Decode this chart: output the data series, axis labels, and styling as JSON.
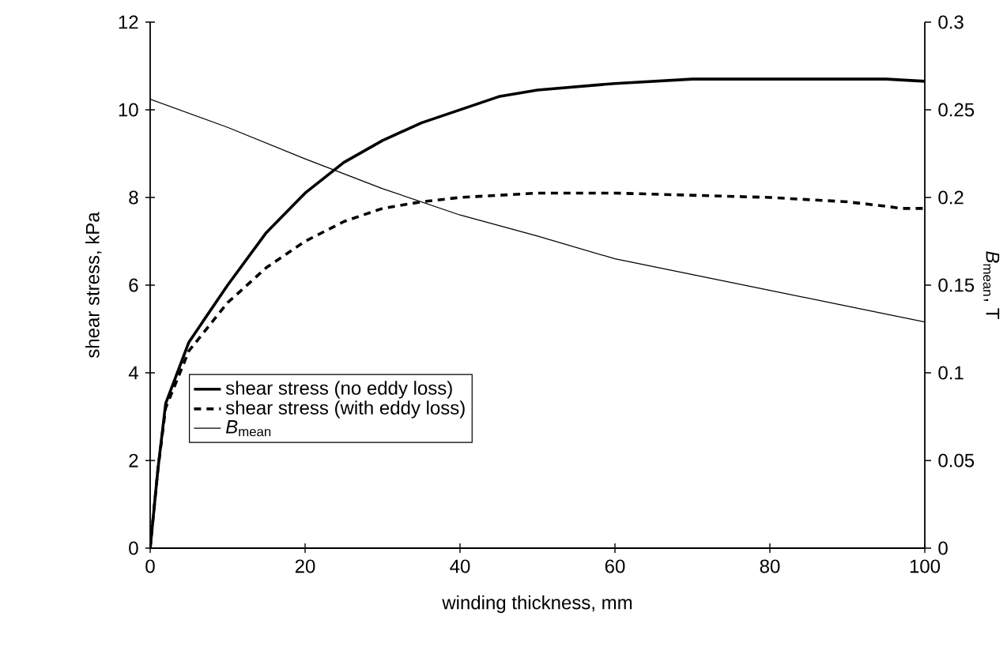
{
  "chart_data": {
    "type": "line",
    "xlabel": "winding thickness, mm",
    "ylabel": "shear stress, kPa",
    "y2label": "*B*$_{mean}$, T",
    "xlim": [
      0,
      100
    ],
    "ylim": [
      0,
      12
    ],
    "y2lim": [
      0,
      0.3
    ],
    "xticks": [
      0,
      20,
      40,
      60,
      80,
      100
    ],
    "yticks": [
      0,
      2,
      4,
      6,
      8,
      10,
      12
    ],
    "y2ticks": [
      0,
      0.05,
      0.1,
      0.15,
      0.2,
      0.25,
      0.3
    ],
    "grid": false,
    "legend": "left",
    "marker": "none",
    "series": [
      {
        "name": "shear stress (no eddy loss)",
        "color": "#000000",
        "line_style": "solid",
        "x": [
          0,
          1,
          2,
          5,
          10,
          15,
          20,
          25,
          30,
          35,
          40,
          45,
          50,
          60,
          70,
          80,
          90,
          95,
          100
        ],
        "values": [
          0,
          1.8,
          3.3,
          4.7,
          6.0,
          7.2,
          8.1,
          8.8,
          9.3,
          9.7,
          10.0,
          10.3,
          10.45,
          10.6,
          10.7,
          10.7,
          10.7,
          10.7,
          10.65
        ]
      },
      {
        "name": "shear stress (with eddy loss)",
        "color": "#000000",
        "line_style": "dashed",
        "x": [
          0,
          1,
          2,
          5,
          10,
          15,
          20,
          25,
          30,
          35,
          40,
          50,
          60,
          70,
          80,
          90,
          95,
          97,
          100
        ],
        "values": [
          0,
          1.8,
          3.2,
          4.5,
          5.6,
          6.4,
          7.0,
          7.45,
          7.75,
          7.9,
          8.0,
          8.1,
          8.1,
          8.05,
          8.0,
          7.9,
          7.8,
          7.75,
          7.75
        ]
      },
      {
        "name": "*B*$_{mean}$",
        "color": "#000000",
        "line_style": "solid",
        "axis": "y2",
        "x": [
          0,
          10,
          20,
          30,
          40,
          50,
          60,
          70,
          80,
          90,
          100
        ],
        "values": [
          0.256,
          0.24,
          0.222,
          0.205,
          0.19,
          0.178,
          0.165,
          0.156,
          0.147,
          0.138,
          0.129
        ]
      }
    ]
  }
}
